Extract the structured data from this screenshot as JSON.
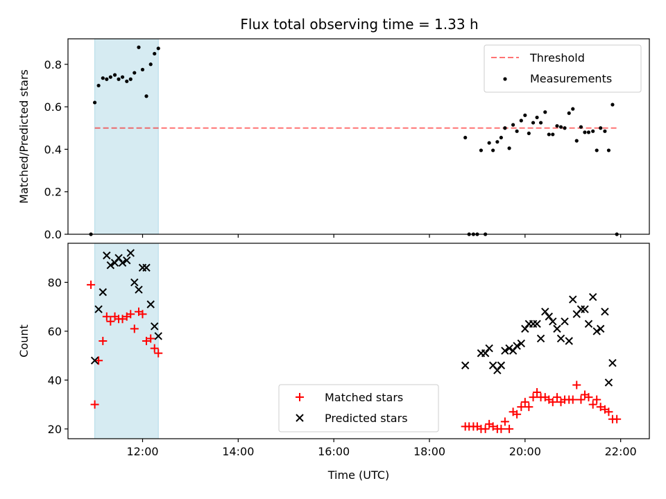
{
  "chart_data": [
    {
      "type": "scatter",
      "title": "Flux total observing time = 1.33 h",
      "ylabel": "Matched/Predicted stars",
      "xlabel": "",
      "xlim": [
        10.44,
        22.6
      ],
      "ylim": [
        0,
        0.92
      ],
      "yticks": [
        0.0,
        0.2,
        0.4,
        0.6,
        0.8
      ],
      "ytick_labels": [
        "0.0",
        "0.2",
        "0.4",
        "0.6",
        "0.8"
      ],
      "xticks": [
        12,
        14,
        16,
        18,
        20,
        22
      ],
      "grid": false,
      "legend": "top-right",
      "highlight_span": {
        "x_start": 11.0,
        "x_end": 12.33,
        "color": "#add8e6"
      },
      "threshold": {
        "name": "Threshold",
        "y": 0.5,
        "x_start": 11.0,
        "x_end": 21.92,
        "color": "#ff0000"
      },
      "series": [
        {
          "name": "Measurements",
          "marker": "dot",
          "color": "#000000",
          "x": [
            10.92,
            11.0,
            11.08,
            11.17,
            11.25,
            11.33,
            11.42,
            11.5,
            11.58,
            11.67,
            11.75,
            11.83,
            11.92,
            12.0,
            12.08,
            12.17,
            12.25,
            12.33,
            18.75,
            18.83,
            18.92,
            19.0,
            19.08,
            19.17,
            19.25,
            19.33,
            19.42,
            19.5,
            19.58,
            19.67,
            19.75,
            19.83,
            19.92,
            20.0,
            20.08,
            20.17,
            20.25,
            20.33,
            20.42,
            20.5,
            20.58,
            20.67,
            20.75,
            20.83,
            20.92,
            21.0,
            21.08,
            21.17,
            21.25,
            21.33,
            21.42,
            21.5,
            21.58,
            21.67,
            21.75,
            21.83,
            21.92
          ],
          "y": [
            0.0,
            0.62,
            0.7,
            0.735,
            0.73,
            0.74,
            0.75,
            0.73,
            0.74,
            0.72,
            0.73,
            0.76,
            0.88,
            0.775,
            0.65,
            0.8,
            0.85,
            0.875,
            0.455,
            0.0,
            0.0,
            0.0,
            0.395,
            0.0,
            0.43,
            0.395,
            0.435,
            0.455,
            0.5,
            0.405,
            0.515,
            0.485,
            0.535,
            0.56,
            0.475,
            0.525,
            0.55,
            0.525,
            0.575,
            0.47,
            0.47,
            0.51,
            0.505,
            0.5,
            0.57,
            0.59,
            0.44,
            0.505,
            0.48,
            0.48,
            0.485,
            0.395,
            0.5,
            0.485,
            0.395,
            0.61,
            0.0
          ]
        }
      ]
    },
    {
      "type": "scatter",
      "xlabel": "Time (UTC)",
      "ylabel": "Count",
      "xlim": [
        10.44,
        22.6
      ],
      "ylim": [
        16,
        96
      ],
      "yticks": [
        20,
        40,
        60,
        80
      ],
      "ytick_labels": [
        "20",
        "40",
        "60",
        "80"
      ],
      "xticks": [
        12,
        14,
        16,
        18,
        20,
        22
      ],
      "xtick_labels": [
        "12:00",
        "14:00",
        "16:00",
        "18:00",
        "20:00",
        "22:00"
      ],
      "grid": false,
      "legend": "lower-center",
      "highlight_span": {
        "x_start": 11.0,
        "x_end": 12.33,
        "color": "#add8e6"
      },
      "series": [
        {
          "name": "Matched stars",
          "marker": "plus",
          "color": "#ff0000",
          "x": [
            10.92,
            11.0,
            11.08,
            11.17,
            11.25,
            11.33,
            11.42,
            11.5,
            11.58,
            11.67,
            11.75,
            11.83,
            11.92,
            12.0,
            12.08,
            12.17,
            12.25,
            12.33,
            18.75,
            18.83,
            18.92,
            19.0,
            19.08,
            19.17,
            19.25,
            19.33,
            19.42,
            19.5,
            19.58,
            19.67,
            19.75,
            19.83,
            19.92,
            20.0,
            20.08,
            20.17,
            20.25,
            20.33,
            20.42,
            20.5,
            20.58,
            20.67,
            20.75,
            20.83,
            20.92,
            21.0,
            21.08,
            21.17,
            21.25,
            21.33,
            21.42,
            21.5,
            21.58,
            21.67,
            21.75,
            21.83,
            21.92
          ],
          "y": [
            79,
            30,
            48,
            56,
            66,
            64,
            66,
            65,
            65,
            66,
            67,
            61,
            68,
            67,
            56,
            57,
            53,
            51,
            21,
            21,
            21,
            21,
            20,
            20,
            22,
            21,
            20,
            20,
            23,
            20,
            27,
            26,
            29,
            31,
            29,
            33,
            35,
            33,
            33,
            32,
            31,
            33,
            31,
            32,
            32,
            32,
            38,
            32,
            34,
            33,
            30,
            32,
            29,
            28,
            27,
            24,
            24
          ]
        },
        {
          "name": "Predicted stars",
          "marker": "x",
          "color": "#000000",
          "x": [
            11.0,
            11.08,
            11.17,
            11.25,
            11.33,
            11.42,
            11.5,
            11.58,
            11.67,
            11.75,
            11.83,
            11.92,
            12.0,
            12.08,
            12.17,
            12.25,
            12.33,
            18.75,
            19.08,
            19.17,
            19.25,
            19.33,
            19.42,
            19.5,
            19.58,
            19.67,
            19.75,
            19.83,
            19.92,
            20.0,
            20.08,
            20.17,
            20.25,
            20.33,
            20.42,
            20.5,
            20.58,
            20.67,
            20.75,
            20.83,
            20.92,
            21.0,
            21.08,
            21.17,
            21.25,
            21.33,
            21.42,
            21.5,
            21.58,
            21.67,
            21.75,
            21.83
          ],
          "y": [
            48,
            69,
            76,
            91,
            87,
            88,
            90,
            88,
            89,
            92,
            80,
            77,
            86,
            86,
            71,
            62,
            58,
            46,
            51,
            51,
            53,
            46,
            44,
            46,
            52,
            53,
            52,
            54,
            55,
            61,
            63,
            63,
            63,
            57,
            68,
            66,
            64,
            61,
            57,
            64,
            56,
            73,
            67,
            69,
            69,
            63,
            74,
            60,
            61,
            68,
            39,
            47
          ]
        }
      ]
    }
  ]
}
